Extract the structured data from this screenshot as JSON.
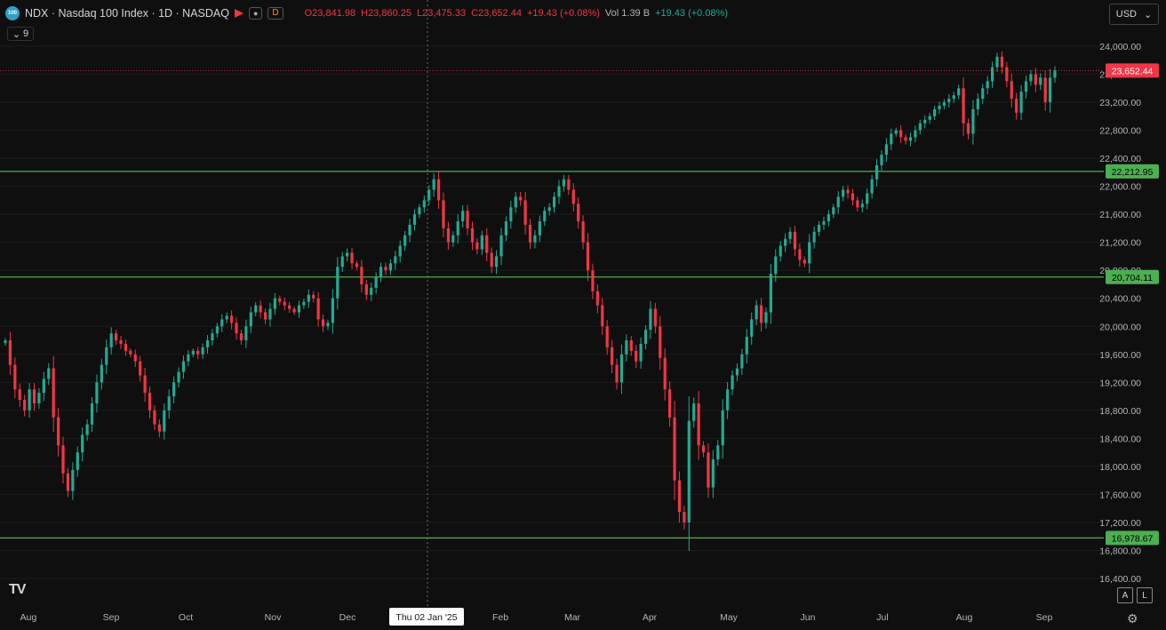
{
  "header": {
    "logo_text": "100",
    "title": "NDX · Nasdaq 100 Index · 1D · NASDAQ",
    "badge_dot": "●",
    "badge_d": "D",
    "open": "O23,841.98",
    "high": "H23,860.25",
    "low": "L23,475.33",
    "close": "C23,652.44",
    "change": "+19.43 (+0.08%)",
    "vol": "Vol 1.39 B",
    "vol_change": "+19.43 (+0.08%)"
  },
  "indicators_toggle": {
    "icon": "chevron-down-icon",
    "count": "9"
  },
  "currency_button": {
    "label": "USD",
    "icon": "chevron-down-icon"
  },
  "tv_logo": "TV",
  "scale_buttons": [
    "A",
    "L"
  ],
  "settings_icon": "gear-icon",
  "colors": {
    "up": "#22ab94",
    "down": "#f23645",
    "hline": "#4caf50",
    "last": "#f23645"
  },
  "chart_data": {
    "type": "candlestick",
    "series_name": "NDX",
    "y_range": [
      16250,
      24350
    ],
    "y_ticks": [
      "24,000.00",
      "23,600.00",
      "23,200.00",
      "22,800.00",
      "22,400.00",
      "22,000.00",
      "21,600.00",
      "21,200.00",
      "20,800.00",
      "20,400.00",
      "20,000.00",
      "19,600.00",
      "19,200.00",
      "18,800.00",
      "18,400.00",
      "18,000.00",
      "17,600.00",
      "17,200.00",
      "16,800.00",
      "16,400.00"
    ],
    "x_labels": [
      "Aug",
      "Sep",
      "Oct",
      "Nov",
      "Dec",
      "Jan",
      "Feb",
      "Mar",
      "Apr",
      "May",
      "Jun",
      "Jul",
      "Aug",
      "Sep"
    ],
    "crosshair_label": "Thu 02 Jan '25",
    "horizontal_levels": [
      {
        "value": 22212.95,
        "label": "22,212.95"
      },
      {
        "value": 20704.11,
        "label": "20,704.11"
      },
      {
        "value": 16978.67,
        "label": "16,978.67"
      }
    ],
    "last_price": {
      "value": 23652.44,
      "label": "23,652.44"
    },
    "closes": [
      19800,
      19450,
      19100,
      18950,
      18800,
      19100,
      18900,
      19050,
      19250,
      19400,
      18700,
      18300,
      17900,
      17650,
      17950,
      18200,
      18450,
      18600,
      18900,
      19200,
      19450,
      19700,
      19900,
      19800,
      19750,
      19650,
      19600,
      19500,
      19300,
      19050,
      18800,
      18600,
      18500,
      18800,
      19000,
      19200,
      19350,
      19500,
      19600,
      19650,
      19600,
      19700,
      19800,
      19900,
      20000,
      20100,
      20150,
      20050,
      19900,
      19800,
      20000,
      20200,
      20300,
      20200,
      20100,
      20250,
      20400,
      20350,
      20300,
      20250,
      20200,
      20300,
      20350,
      20450,
      20400,
      20100,
      20000,
      20050,
      20400,
      20850,
      21000,
      21050,
      20900,
      20850,
      20600,
      20450,
      20550,
      20700,
      20850,
      20800,
      20900,
      21000,
      21150,
      21300,
      21450,
      21600,
      21700,
      21800,
      21950,
      22100,
      21800,
      21400,
      21200,
      21300,
      21500,
      21650,
      21400,
      21200,
      21100,
      21300,
      21050,
      20850,
      21000,
      21300,
      21500,
      21700,
      21850,
      21800,
      21450,
      21200,
      21300,
      21500,
      21650,
      21700,
      21850,
      22000,
      22100,
      21950,
      21750,
      21500,
      21200,
      20800,
      20500,
      20300,
      20000,
      19700,
      19450,
      19200,
      19600,
      19800,
      19650,
      19500,
      19750,
      19950,
      20250,
      20000,
      19550,
      19100,
      18700,
      17800,
      17350,
      17200,
      18650,
      18900,
      18300,
      18200,
      17700,
      18100,
      18300,
      18800,
      19100,
      19300,
      19400,
      19600,
      19850,
      20100,
      20300,
      20050,
      20200,
      20750,
      21000,
      21150,
      21250,
      21350,
      21100,
      20950,
      20900,
      21200,
      21350,
      21450,
      21500,
      21600,
      21700,
      21850,
      21950,
      21900,
      21800,
      21700,
      21750,
      21900,
      22100,
      22300,
      22450,
      22600,
      22750,
      22800,
      22700,
      22650,
      22700,
      22800,
      22900,
      22950,
      23000,
      23100,
      23150,
      23200,
      23250,
      23300,
      23400,
      22900,
      22750,
      23100,
      23250,
      23400,
      23500,
      23700,
      23850,
      23700,
      23500,
      23250,
      23050,
      23350,
      23500,
      23600,
      23450,
      23550,
      23200,
      23550,
      23652.44
    ]
  }
}
